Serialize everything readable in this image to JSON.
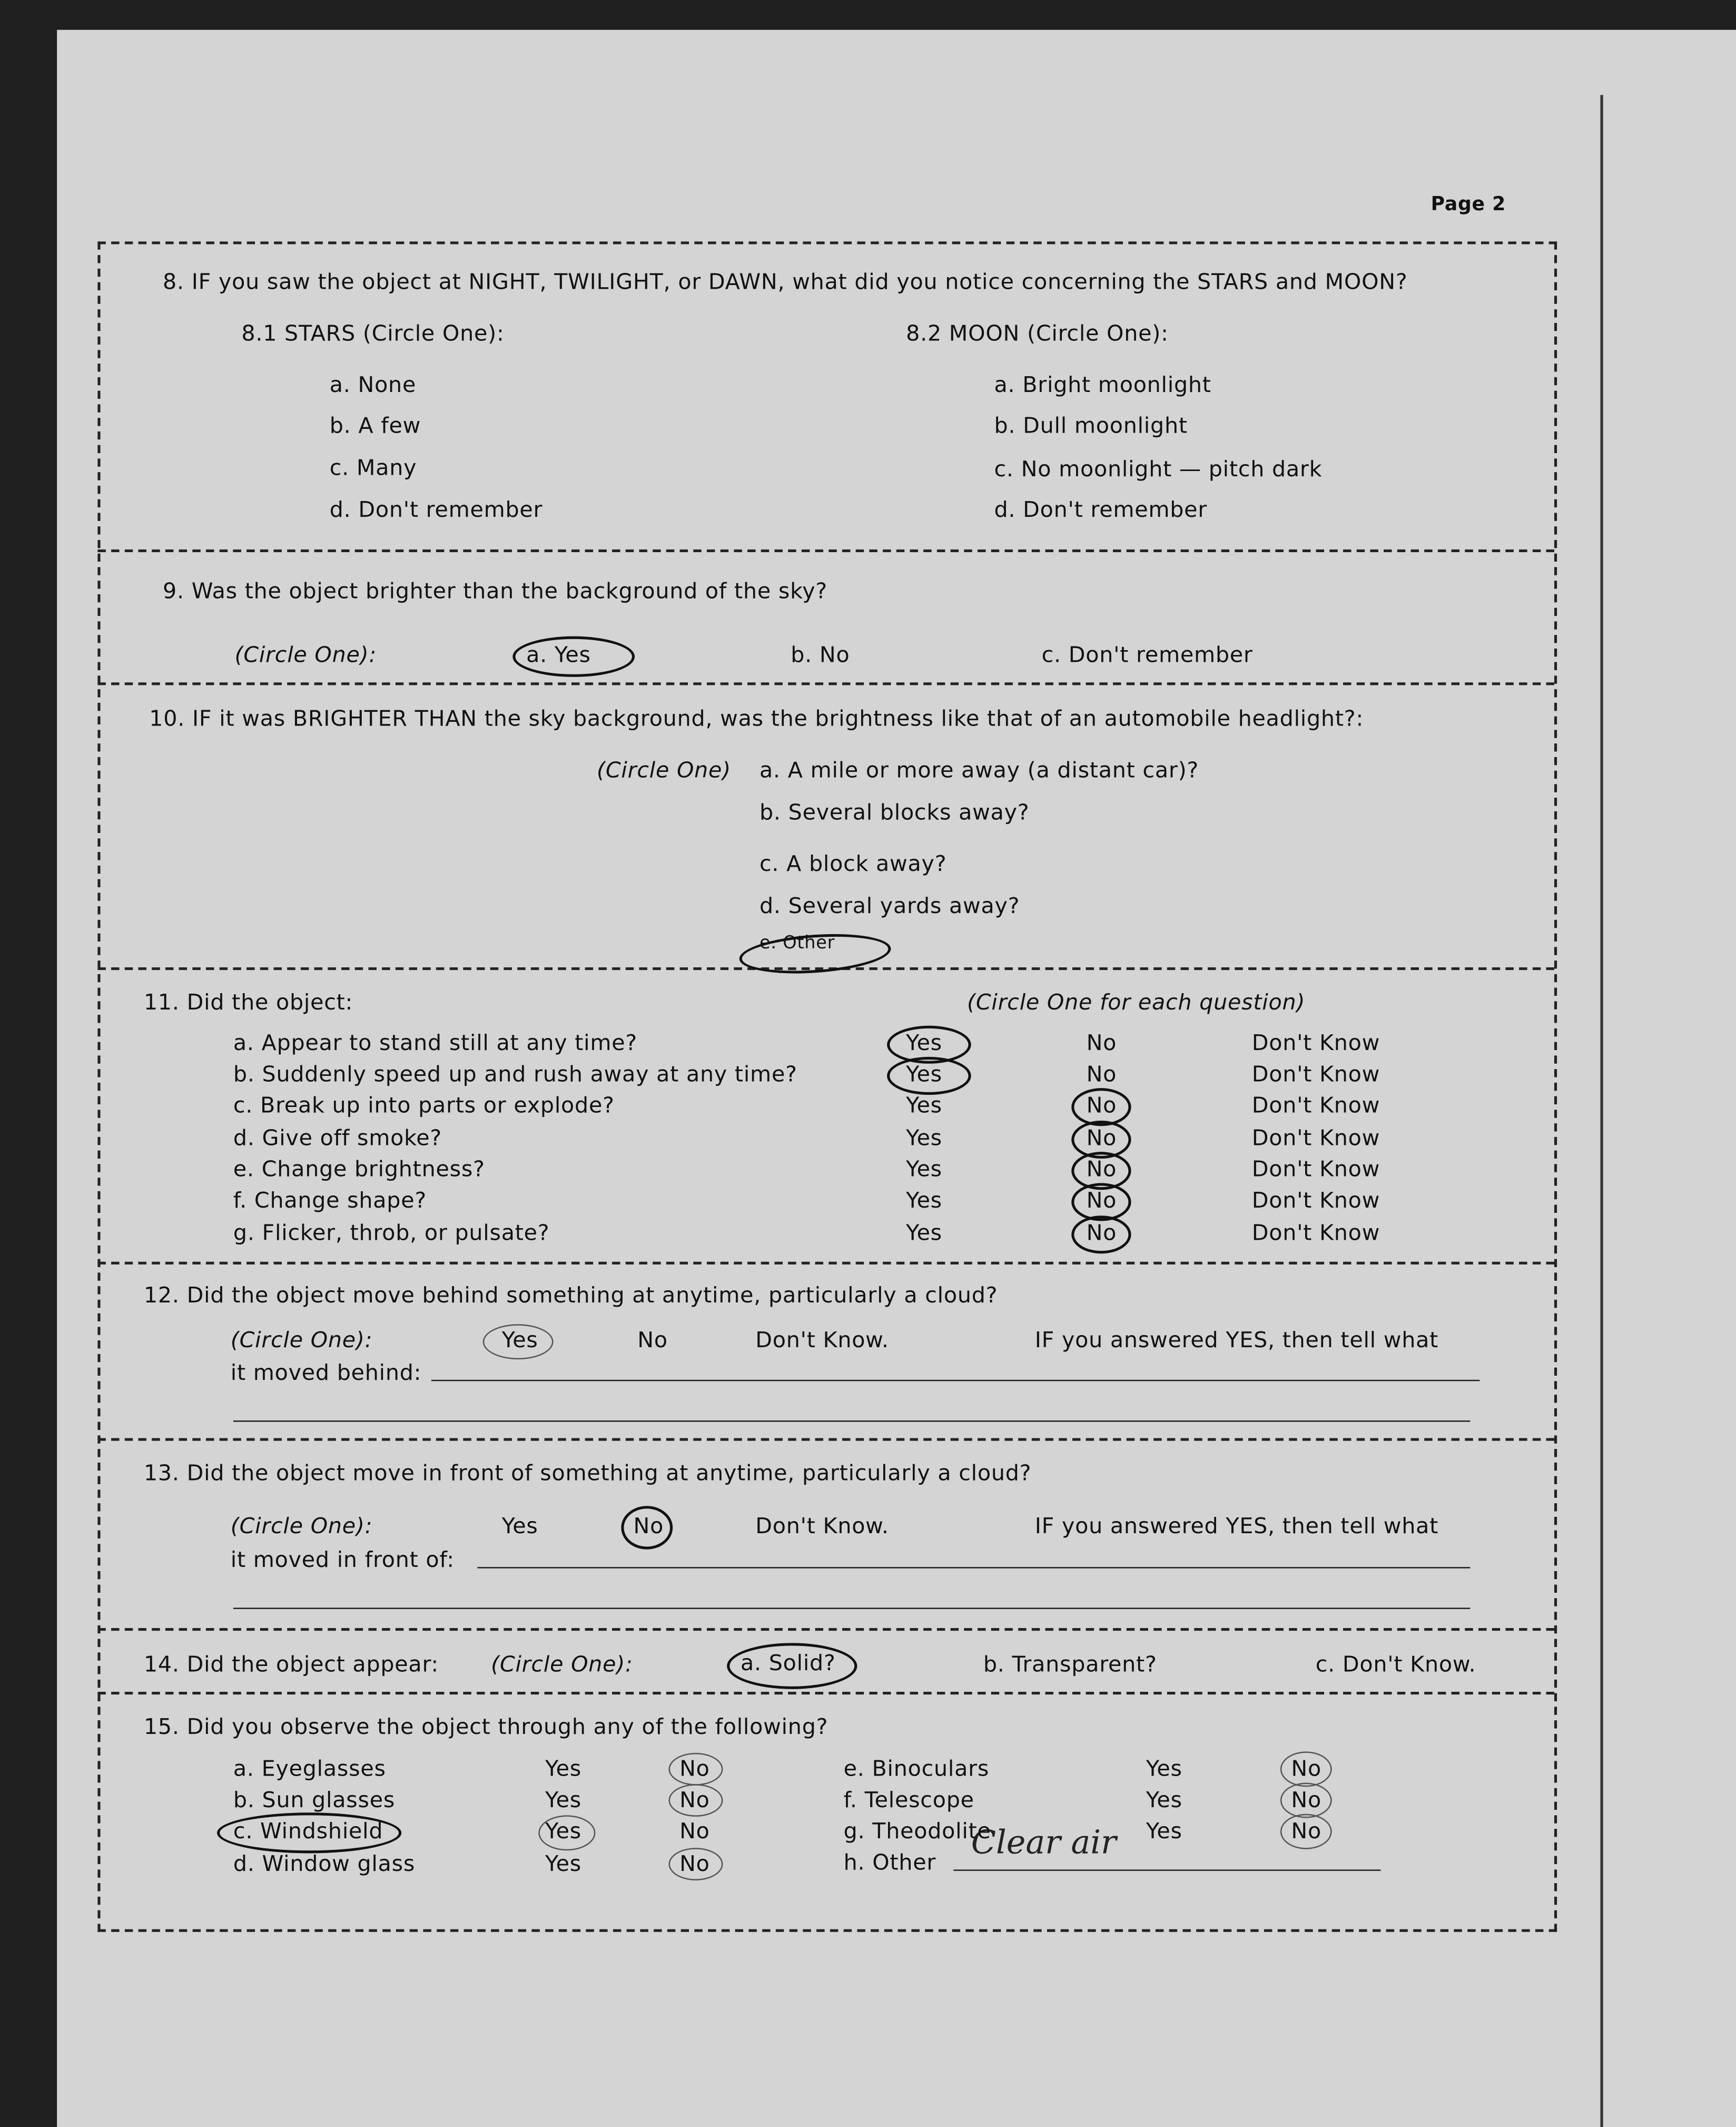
{
  "page_label": "Page 2",
  "q8": {
    "question": "8.  IF you saw the object at NIGHT, TWILIGHT, or DAWN, what did you notice concerning the STARS and MOON?",
    "stars_label": "8.1  STARS (Circle One):",
    "stars_options": [
      "a.  None",
      "b.  A few",
      "c.  Many",
      "d.  Don't remember"
    ],
    "moon_label": "8.2  MOON (Circle One):",
    "moon_options": [
      "a.  Bright moonlight",
      "b.  Dull moonlight",
      "c.  No moonlight — pitch dark",
      "d.  Don't remember"
    ]
  },
  "q9": {
    "question": "9.  Was the object brighter than the background of the sky?",
    "circle_label": "(Circle One):",
    "options": [
      "a.  Yes",
      "b.  No",
      "c.  Don't remember"
    ],
    "selected": "a.  Yes"
  },
  "q10": {
    "question": "10.  IF it was BRIGHTER THAN the sky background, was the brightness like that of an automobile headlight?:",
    "circle_label": "(Circle One)",
    "options": [
      "a.  A mile or more away (a distant car)?",
      "b.  Several blocks away?",
      "c.  A block away?",
      "d.  Several yards away?",
      "e.  Other"
    ],
    "selected": "e.  Other"
  },
  "q11": {
    "question": "11.  Did the object:",
    "circle_label": "(Circle One for each question)",
    "columns": [
      "Yes",
      "No",
      "Don't Know"
    ],
    "rows": [
      {
        "label": "a.  Appear to stand still at any time?",
        "answer": "Yes"
      },
      {
        "label": "b.  Suddenly speed up and rush away at any time?",
        "answer": "Yes"
      },
      {
        "label": "c.  Break up into parts or explode?",
        "answer": "No"
      },
      {
        "label": "d.  Give off smoke?",
        "answer": "No"
      },
      {
        "label": "e.  Change brightness?",
        "answer": "No"
      },
      {
        "label": "f.  Change shape?",
        "answer": "No"
      },
      {
        "label": "g.  Flicker, throb, or pulsate?",
        "answer": "No"
      }
    ]
  },
  "q12": {
    "question": "12.  Did the object move behind something at anytime, particularly a cloud?",
    "circle_label": "(Circle One):",
    "options": [
      "Yes",
      "No",
      "Don't Know."
    ],
    "selected": "Yes",
    "followup": "IF you answered YES, then tell what",
    "followup2": "it moved behind:"
  },
  "q13": {
    "question": "13.  Did the object move in front of something at anytime, particularly a cloud?",
    "circle_label": "(Circle One):",
    "options": [
      "Yes",
      "No",
      "Don't Know."
    ],
    "selected": "No",
    "followup": "IF you answered YES, then tell what",
    "followup2": "it moved in front of:"
  },
  "q14": {
    "question": "14.  Did the object appear:",
    "circle_label": "(Circle One):",
    "options": [
      "a.  Solid?",
      "b.  Transparent?",
      "c.  Don't Know."
    ],
    "selected": "a.  Solid?"
  },
  "q15": {
    "question": "15.  Did you observe the object through any of the following?",
    "left": [
      {
        "label": "a.  Eyeglasses",
        "yes": "Yes",
        "no": "No",
        "answer": "No"
      },
      {
        "label": "b.  Sun glasses",
        "yes": "Yes",
        "no": "No",
        "answer": "No"
      },
      {
        "label": "c.  Windshield",
        "yes": "Yes",
        "no": "No",
        "answer": "Yes"
      },
      {
        "label": "d.  Window glass",
        "yes": "Yes",
        "no": "No",
        "answer": "No"
      }
    ],
    "right": [
      {
        "label": "e.  Binoculars",
        "yes": "Yes",
        "no": "No",
        "answer": "No"
      },
      {
        "label": "f.  Telescope",
        "yes": "Yes",
        "no": "No",
        "answer": "No"
      },
      {
        "label": "g.  Theodolite",
        "yes": "Yes",
        "no": "No",
        "answer": "No"
      }
    ],
    "other_label": "h.  Other",
    "other_value": "Clear air"
  }
}
